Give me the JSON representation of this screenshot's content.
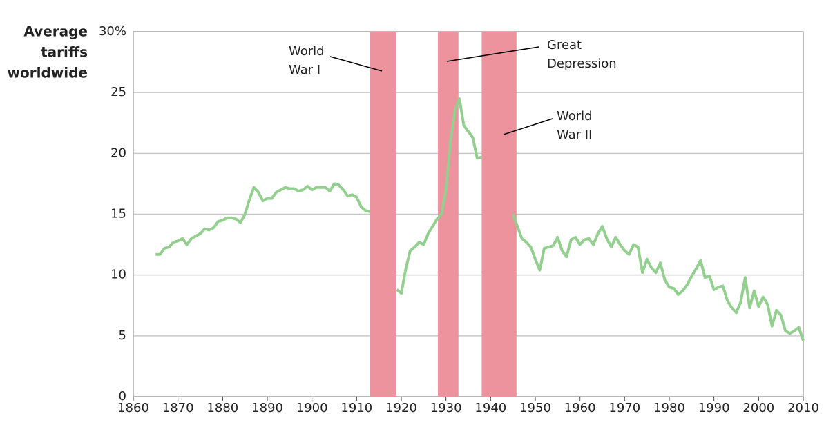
{
  "chart_data": {
    "type": "line",
    "ylabel": [
      "Average",
      "tariffs",
      "worldwide"
    ],
    "x": [
      1865,
      1866,
      1867,
      1868,
      1869,
      1870,
      1871,
      1872,
      1873,
      1874,
      1875,
      1876,
      1877,
      1878,
      1879,
      1880,
      1881,
      1882,
      1883,
      1884,
      1885,
      1886,
      1887,
      1888,
      1889,
      1890,
      1891,
      1892,
      1893,
      1894,
      1895,
      1896,
      1897,
      1898,
      1899,
      1900,
      1901,
      1902,
      1903,
      1904,
      1905,
      1906,
      1907,
      1908,
      1909,
      1910,
      1911,
      1912,
      1913,
      1914,
      1915,
      1916,
      1917,
      1918,
      1919,
      1920,
      1921,
      1922,
      1923,
      1924,
      1925,
      1926,
      1927,
      1928,
      1929,
      1930,
      1931,
      1932,
      1933,
      1934,
      1935,
      1936,
      1937,
      1938,
      1939,
      1940,
      1941,
      1942,
      1943,
      1944,
      1945,
      1946,
      1947,
      1948,
      1949,
      1950,
      1951,
      1952,
      1953,
      1954,
      1955,
      1956,
      1957,
      1958,
      1959,
      1960,
      1961,
      1962,
      1963,
      1964,
      1965,
      1966,
      1967,
      1968,
      1969,
      1970,
      1971,
      1972,
      1973,
      1974,
      1975,
      1976,
      1977,
      1978,
      1979,
      1980,
      1981,
      1982,
      1983,
      1984,
      1985,
      1986,
      1987,
      1988,
      1989,
      1990,
      1991,
      1992,
      1993,
      1994,
      1995,
      1996,
      1997,
      1998,
      1999,
      2000,
      2001,
      2002,
      2003,
      2004,
      2005,
      2006,
      2007,
      2008,
      2009,
      2010
    ],
    "series": [
      {
        "color": "#93cf8e",
        "values": [
          11.7,
          11.7,
          12.2,
          12.3,
          12.7,
          12.8,
          13.0,
          12.5,
          13.0,
          13.2,
          13.4,
          13.8,
          13.7,
          13.9,
          14.4,
          14.5,
          14.7,
          14.7,
          14.6,
          14.3,
          15.0,
          16.2,
          17.2,
          16.8,
          16.1,
          16.3,
          16.3,
          16.8,
          17.0,
          17.2,
          17.1,
          17.1,
          16.9,
          17.0,
          17.3,
          17.0,
          17.2,
          17.2,
          17.2,
          16.9,
          17.5,
          17.4,
          17.0,
          16.5,
          16.6,
          16.4,
          15.6,
          15.3,
          15.2,
          null,
          null,
          null,
          null,
          null,
          8.8,
          8.5,
          10.5,
          12.0,
          12.3,
          12.7,
          12.5,
          13.4,
          14.0,
          14.6,
          15.0,
          17.0,
          21.0,
          23.5,
          24.5,
          22.3,
          21.8,
          21.3,
          19.6,
          19.7,
          null,
          null,
          null,
          null,
          null,
          null,
          15.0,
          14.0,
          13.0,
          12.7,
          12.3,
          11.3,
          10.4,
          12.2,
          12.3,
          12.4,
          13.1,
          12.0,
          11.5,
          12.9,
          13.1,
          12.5,
          12.9,
          13.0,
          12.5,
          13.4,
          14.0,
          13.0,
          12.3,
          13.1,
          12.5,
          12.0,
          11.7,
          12.5,
          12.3,
          10.2,
          11.3,
          10.6,
          10.2,
          11.0,
          9.6,
          9.0,
          8.9,
          8.4,
          8.7,
          9.2,
          9.9,
          10.5,
          11.2,
          9.8,
          9.9,
          8.8,
          9.0,
          9.1,
          7.9,
          7.3,
          6.9,
          7.8,
          9.8,
          7.3,
          8.7,
          7.4,
          8.2,
          7.6,
          5.8,
          7.1,
          6.7,
          5.4,
          5.2,
          5.4,
          5.7,
          4.6
        ]
      }
    ],
    "shaded_periods": [
      {
        "label": [
          "World",
          "War I"
        ],
        "start": 1913,
        "end": 1918.8
      },
      {
        "label": [
          "Great",
          "Depression"
        ],
        "start": 1928.2,
        "end": 1932.8
      },
      {
        "label": [
          "World",
          "War II"
        ],
        "start": 1938,
        "end": 1945.8
      }
    ],
    "shade_color": "#ec939e",
    "xlim": [
      1860,
      2010
    ],
    "xticks": [
      1860,
      1870,
      1880,
      1890,
      1900,
      1910,
      1920,
      1930,
      1940,
      1950,
      1960,
      1970,
      1980,
      1990,
      2000,
      2010
    ],
    "ylim": [
      0,
      30
    ],
    "yticks": [
      0,
      5,
      10,
      15,
      20,
      {
        "value": 30,
        "label": "30%"
      },
      25
    ],
    "grid": true
  }
}
